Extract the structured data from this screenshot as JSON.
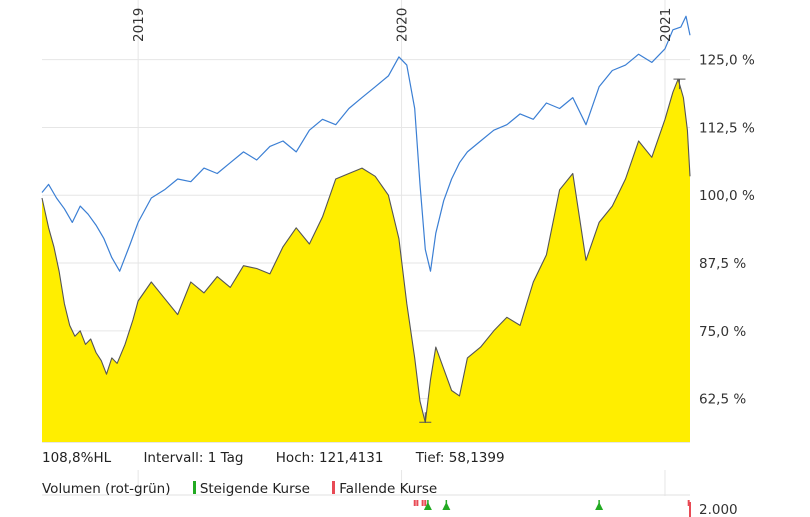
{
  "chart_data": {
    "type": "area",
    "y_unit": "%",
    "y_ticks": [
      125.0,
      112.5,
      100.0,
      87.5,
      75.0,
      62.5
    ],
    "y_tick_labels": [
      "125,0 %",
      "112,5 %",
      "100,0 %",
      "87,5 %",
      "75,0 %",
      "62,5 %"
    ],
    "ylim": [
      54.5,
      136
    ],
    "x_year_labels": [
      "2019",
      "2020",
      "2021"
    ],
    "x_year_positions": [
      2019.0,
      2020.0,
      2021.0
    ],
    "xlim": [
      2018.635,
      2021.095
    ],
    "grid": true,
    "series": [
      {
        "color": "#3b7fd4",
        "x": [
          2018.635,
          2018.66,
          2018.69,
          2018.72,
          2018.75,
          2018.78,
          2018.81,
          2018.84,
          2018.87,
          2018.9,
          2018.93,
          2018.97,
          2019.0,
          2019.05,
          2019.1,
          2019.15,
          2019.2,
          2019.25,
          2019.3,
          2019.35,
          2019.4,
          2019.45,
          2019.5,
          2019.55,
          2019.6,
          2019.65,
          2019.7,
          2019.75,
          2019.8,
          2019.85,
          2019.9,
          2019.95,
          2019.99,
          2020.02,
          2020.05,
          2020.07,
          2020.09,
          2020.11,
          2020.13,
          2020.16,
          2020.19,
          2020.22,
          2020.25,
          2020.3,
          2020.35,
          2020.4,
          2020.45,
          2020.5,
          2020.55,
          2020.6,
          2020.65,
          2020.7,
          2020.75,
          2020.8,
          2020.85,
          2020.9,
          2020.95,
          2021.0,
          2021.03,
          2021.06,
          2021.08,
          2021.095
        ],
        "values": [
          100.5,
          102.0,
          99.5,
          97.5,
          95.0,
          98.0,
          96.5,
          94.5,
          92.0,
          88.5,
          86.0,
          91.0,
          95.0,
          99.5,
          101.0,
          103.0,
          102.5,
          105.0,
          104.0,
          106.0,
          108.0,
          106.5,
          109.0,
          110.0,
          108.0,
          112.0,
          114.0,
          113.0,
          116.0,
          118.0,
          120.0,
          122.0,
          125.5,
          124.0,
          116.0,
          102.0,
          90.0,
          86.0,
          93.0,
          99.0,
          103.0,
          106.0,
          108.0,
          110.0,
          112.0,
          113.0,
          115.0,
          114.0,
          117.0,
          116.0,
          118.0,
          113.0,
          120.0,
          123.0,
          124.0,
          126.0,
          124.5,
          127.0,
          130.5,
          131.0,
          133.0,
          129.5
        ]
      },
      {
        "color": "#ffee00",
        "line_color": "#555555",
        "x": [
          2018.635,
          2018.66,
          2018.68,
          2018.7,
          2018.72,
          2018.74,
          2018.76,
          2018.78,
          2018.8,
          2018.82,
          2018.84,
          2018.86,
          2018.88,
          2018.9,
          2018.92,
          2018.95,
          2018.98,
          2019.0,
          2019.05,
          2019.1,
          2019.15,
          2019.2,
          2019.25,
          2019.3,
          2019.35,
          2019.4,
          2019.45,
          2019.5,
          2019.55,
          2019.6,
          2019.65,
          2019.7,
          2019.75,
          2019.8,
          2019.85,
          2019.9,
          2019.95,
          2019.99,
          2020.02,
          2020.05,
          2020.07,
          2020.09,
          2020.11,
          2020.13,
          2020.16,
          2020.19,
          2020.22,
          2020.25,
          2020.3,
          2020.35,
          2020.4,
          2020.45,
          2020.5,
          2020.55,
          2020.6,
          2020.65,
          2020.7,
          2020.75,
          2020.8,
          2020.85,
          2020.9,
          2020.95,
          2021.0,
          2021.03,
          2021.05,
          2021.07,
          2021.085,
          2021.095
        ],
        "values": [
          99.5,
          94.0,
          90.5,
          86.0,
          80.0,
          76.0,
          74.0,
          75.0,
          72.5,
          73.5,
          71.0,
          69.5,
          67.0,
          70.0,
          69.0,
          72.5,
          77.0,
          80.5,
          84.0,
          81.0,
          78.0,
          84.0,
          82.0,
          85.0,
          83.0,
          87.0,
          86.5,
          85.5,
          90.5,
          94.0,
          91.0,
          96.0,
          103.0,
          104.0,
          105.0,
          103.5,
          100.0,
          92.0,
          80.0,
          70.0,
          62.0,
          58.1,
          66.0,
          72.0,
          68.0,
          64.0,
          63.0,
          70.0,
          72.0,
          75.0,
          77.5,
          76.0,
          84.0,
          89.0,
          101.0,
          104.0,
          88.0,
          95.0,
          98.0,
          103.0,
          110.0,
          107.0,
          114.0,
          119.0,
          121.4,
          118.0,
          112.0,
          103.5
        ]
      }
    ],
    "hl_marks": [
      {
        "x": 2021.055,
        "value": 121.4131
      },
      {
        "x": 2020.09,
        "value": 58.1399
      }
    ],
    "volume": {
      "y_tick_label": "2.000",
      "up_color": "#22aa22",
      "down_color": "#e84a55",
      "bars": [
        {
          "x": 2020.05,
          "dir": "down"
        },
        {
          "x": 2020.06,
          "dir": "down"
        },
        {
          "x": 2020.08,
          "dir": "down"
        },
        {
          "x": 2020.09,
          "dir": "down"
        },
        {
          "x": 2020.1,
          "dir": "up"
        },
        {
          "x": 2020.17,
          "dir": "up"
        },
        {
          "x": 2020.75,
          "dir": "up"
        },
        {
          "x": 2021.09,
          "dir": "down"
        }
      ]
    }
  },
  "info": {
    "mode": "108,8%HL",
    "interval": "Intervall: 1 Tag",
    "high": "Hoch: 121,4131",
    "low": "Tief: 58,1399"
  },
  "legend": {
    "title": "Volumen (rot-grün)",
    "rising": "Steigende Kurse",
    "falling": "Fallende Kurse",
    "rising_color": "#22aa22",
    "falling_color": "#e84a55"
  }
}
